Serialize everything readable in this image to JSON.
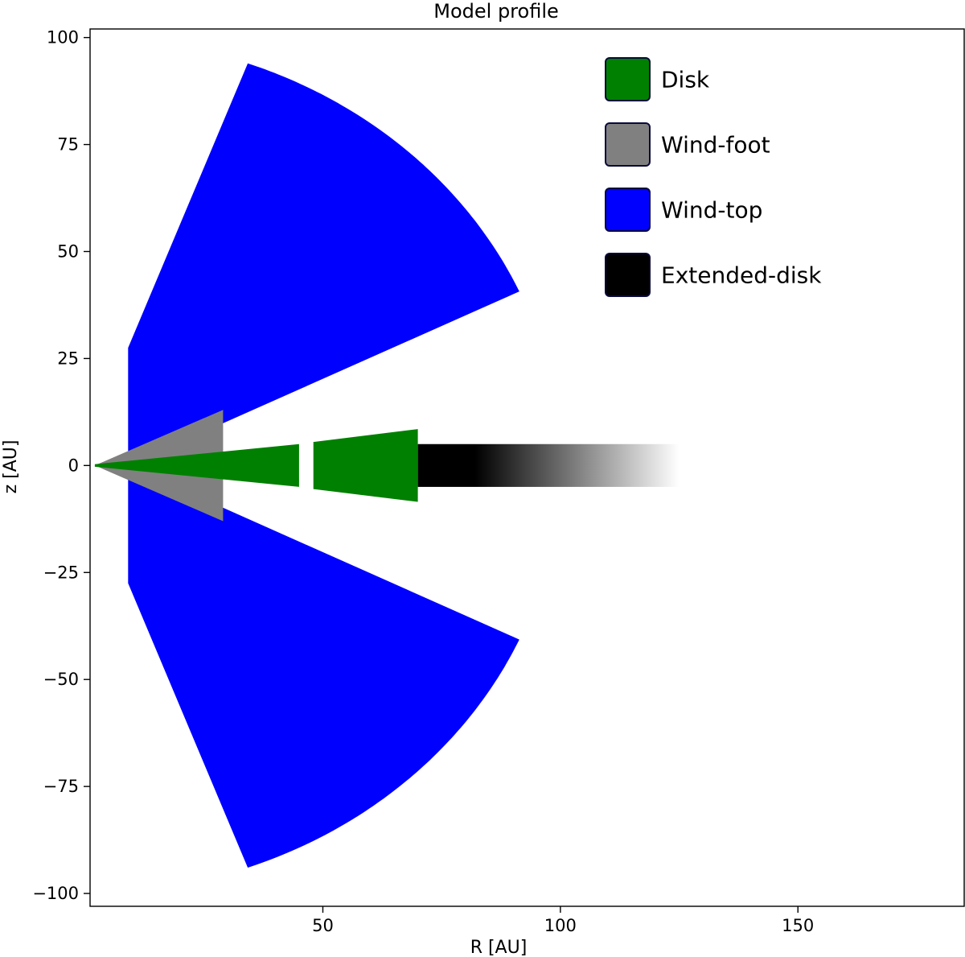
{
  "chart_data": {
    "type": "area",
    "title": "Model profile",
    "xlabel": "R [AU]",
    "ylabel": "z [AU]",
    "xlim": [
      1,
      185
    ],
    "ylim": [
      -103,
      102
    ],
    "x_ticks": [
      {
        "value": 50,
        "label": "50"
      },
      {
        "value": 100,
        "label": "100"
      },
      {
        "value": 150,
        "label": "150"
      }
    ],
    "y_ticks": [
      {
        "value": 100,
        "label": "100"
      },
      {
        "value": 75,
        "label": "75"
      },
      {
        "value": 50,
        "label": "50"
      },
      {
        "value": 25,
        "label": "25"
      },
      {
        "value": 0,
        "label": "0"
      },
      {
        "value": -25,
        "label": "−25"
      },
      {
        "value": -50,
        "label": "−50"
      },
      {
        "value": -75,
        "label": "−75"
      },
      {
        "value": -100,
        "label": "−100"
      }
    ],
    "grid": false,
    "legend_position": "top-right",
    "legend": [
      {
        "label": "Disk",
        "color": "#008000"
      },
      {
        "label": "Wind-foot",
        "color": "#808080"
      },
      {
        "label": "Wind-top",
        "color": "#0000ff"
      },
      {
        "label": "Extended-disk",
        "color": "#000000"
      }
    ],
    "regions": {
      "wind_top": {
        "color": "#0000ff",
        "inner_R": 9,
        "inner_z": 27.5,
        "outer_radius_AU": 100,
        "angle_high_deg": 70,
        "angle_low_deg": 24
      },
      "wind_foot": {
        "color": "#808080",
        "apex_R": 2,
        "outer_R": 29,
        "outer_z": 13
      },
      "disk": {
        "color": "#008000",
        "segments": [
          {
            "R_start": 2,
            "R_end": 45,
            "z_start": 0.3,
            "z_end": 5
          },
          {
            "R_start": 48,
            "R_end": 70,
            "z_start": 5.5,
            "z_end": 8.5
          }
        ]
      },
      "extended_disk": {
        "color": "#000000",
        "R_start": 70,
        "R_end": 125,
        "half_height": 5,
        "fade_start_R": 82
      }
    }
  }
}
